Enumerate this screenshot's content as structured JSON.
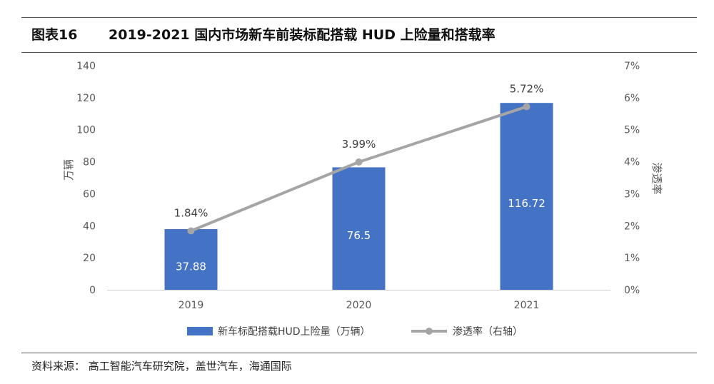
{
  "figure": {
    "number": "图表16",
    "title": "2019-2021 国内市场新车前装标配搭载 HUD 上险量和搭载率"
  },
  "source": "资料来源： 高工智能汽车研究院，盖世汽车，海通国际",
  "colors": {
    "bar": "#4472C4",
    "line": "#A5A5A5",
    "rule": "#555555"
  },
  "chart_data": {
    "type": "bar",
    "categories": [
      "2019",
      "2020",
      "2021"
    ],
    "series": [
      {
        "name": "新车标配搭载HUD上险量（万辆）",
        "type": "bar",
        "axis": "left",
        "values": [
          37.88,
          76.5,
          116.72
        ],
        "labels": [
          "37.88",
          "76.5",
          "116.72"
        ]
      },
      {
        "name": "渗透率（右轴）",
        "type": "line",
        "axis": "right",
        "values": [
          1.84,
          3.99,
          5.72
        ],
        "labels": [
          "1.84%",
          "3.99%",
          "5.72%"
        ]
      }
    ],
    "ylabel": "万辆",
    "y2label": "渗透率",
    "ylim": [
      0,
      140
    ],
    "y2lim": [
      0,
      7
    ],
    "yticks": [
      "0",
      "20",
      "40",
      "60",
      "80",
      "100",
      "120",
      "140"
    ],
    "y2ticks": [
      "0%",
      "1%",
      "2%",
      "3%",
      "4%",
      "5%",
      "6%",
      "7%"
    ],
    "grid": false,
    "legend": "bottom"
  }
}
